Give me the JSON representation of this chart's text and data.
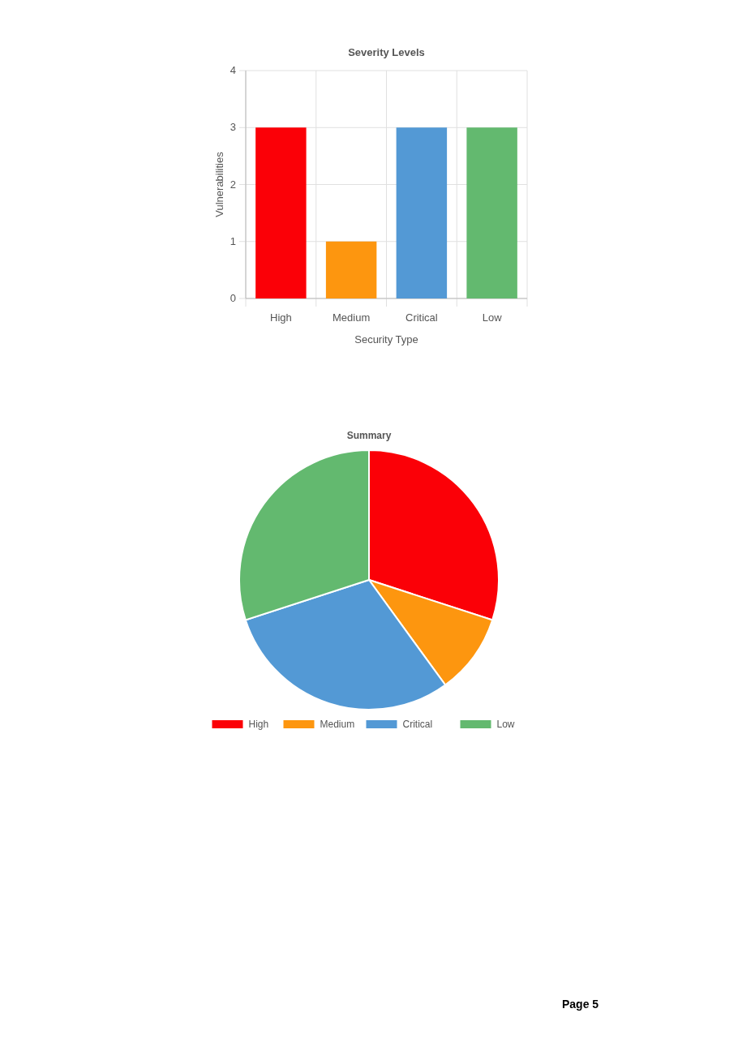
{
  "chart_data": [
    {
      "type": "bar",
      "title": "Severity Levels",
      "xlabel": "Security Type",
      "ylabel": "Vulnerabilities",
      "categories": [
        "High",
        "Medium",
        "Critical",
        "Low"
      ],
      "values": [
        3,
        1,
        3,
        3
      ],
      "colors": [
        "#fb0007",
        "#fd960f",
        "#5399d5",
        "#63b96f"
      ],
      "ylim": [
        0,
        4
      ],
      "yticks": [
        0,
        1,
        2,
        3,
        4
      ],
      "grid": true
    },
    {
      "type": "pie",
      "title": "Summary",
      "categories": [
        "High",
        "Medium",
        "Critical",
        "Low"
      ],
      "values": [
        30,
        10,
        30,
        30
      ],
      "colors": [
        "#fb0007",
        "#fd960f",
        "#5399d5",
        "#63b96f"
      ],
      "legend": "bottom",
      "annotations": [
        "Page 5"
      ]
    }
  ]
}
